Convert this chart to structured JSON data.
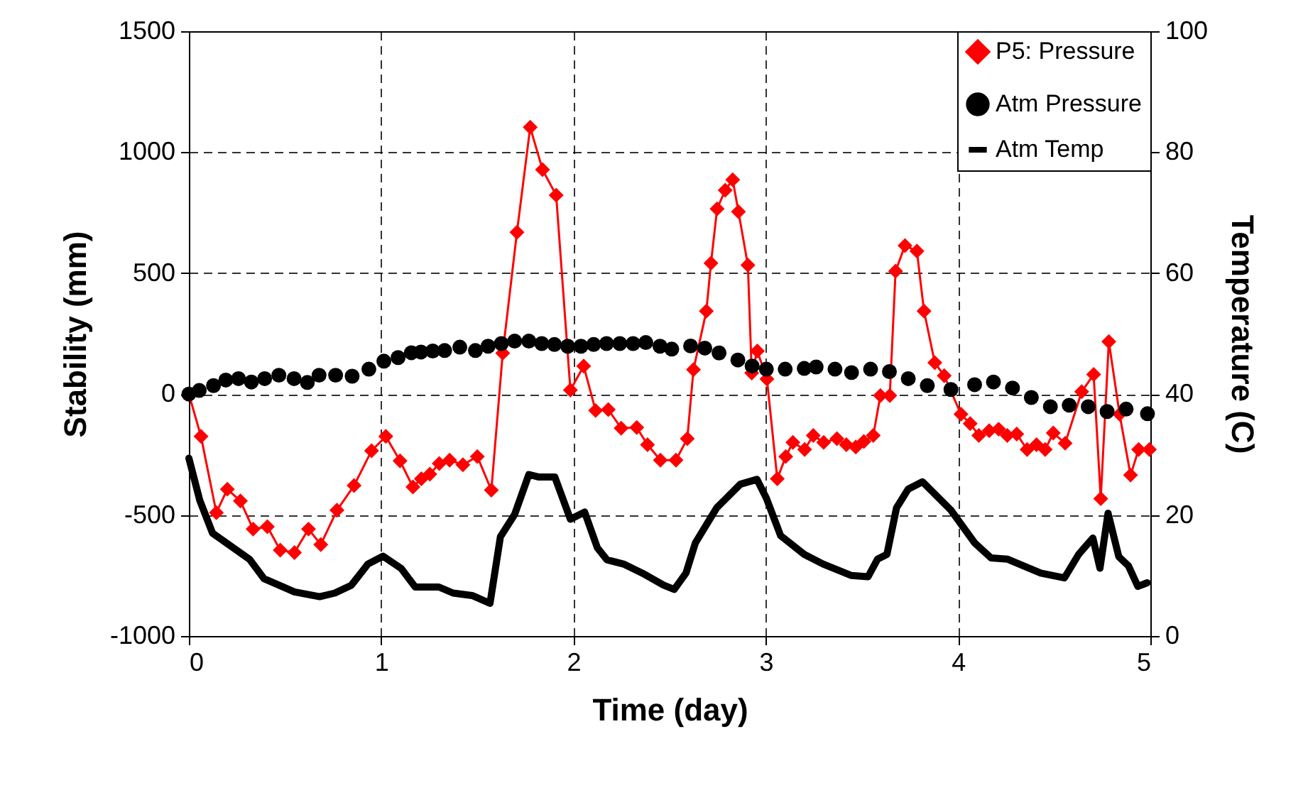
{
  "chart_data": {
    "type": "line",
    "xlabel": "Time (day)",
    "ylabel": "Stability (mm)",
    "y2label": "Temperature (C)",
    "xlim": [
      0,
      5
    ],
    "xticks": [
      0,
      1,
      2,
      3,
      4,
      5
    ],
    "ylim": [
      -1000,
      1500
    ],
    "yticks": [
      -1000,
      -500,
      0,
      500,
      1000,
      1500
    ],
    "y2lim": [
      0,
      100
    ],
    "y2ticks": [
      0,
      20,
      40,
      60,
      80,
      100
    ],
    "grid": true,
    "legend": "top right",
    "series": [
      {
        "name": "P5: Pressure",
        "marker": "diamond",
        "color": "#ff0000",
        "x": [
          0,
          0.063,
          0.143,
          0.2,
          0.268,
          0.334,
          0.408,
          0.475,
          0.549,
          0.622,
          0.686,
          0.77,
          0.859,
          0.95,
          1.024,
          1.098,
          1.165,
          1.209,
          1.253,
          1.302,
          1.356,
          1.425,
          1.5,
          1.573,
          1.632,
          1.706,
          1.775,
          1.839,
          1.91,
          1.984,
          2.053,
          2.115,
          2.181,
          2.248,
          2.329,
          2.385,
          2.452,
          2.533,
          2.592,
          2.624,
          2.691,
          2.715,
          2.747,
          2.789,
          2.828,
          2.858,
          2.907,
          2.927,
          2.956,
          3.006,
          3.06,
          3.104,
          3.141,
          3.202,
          3.247,
          3.301,
          3.37,
          3.419,
          3.468,
          3.51,
          3.559,
          3.596,
          3.645,
          3.675,
          3.724,
          3.786,
          3.823,
          3.879,
          3.928,
          4.015,
          4.063,
          4.108,
          4.162,
          4.211,
          4.256,
          4.305,
          4.359,
          4.408,
          4.453,
          4.495,
          4.557,
          4.643,
          4.705,
          4.742,
          4.784,
          4.84,
          4.897,
          4.939,
          4.995
        ],
        "values": [
          0,
          -175,
          -490,
          -393,
          -442,
          -558,
          -548,
          -645,
          -655,
          -558,
          -622,
          -480,
          -378,
          -234,
          -175,
          -276,
          -384,
          -350,
          -331,
          -287,
          -273,
          -292,
          -258,
          -397,
          169,
          669,
          1103,
          928,
          822,
          17,
          116,
          -68,
          -64,
          -141,
          -138,
          -209,
          -273,
          -273,
          -184,
          101,
          343,
          541,
          766,
          843,
          886,
          754,
          533,
          87,
          178,
          62,
          -350,
          -258,
          -200,
          -229,
          -171,
          -200,
          -184,
          -209,
          -219,
          -196,
          -171,
          -6,
          -6,
          508,
          614,
          591,
          343,
          130,
          76,
          -83,
          -122,
          -171,
          -151,
          -145,
          -171,
          -165,
          -229,
          -209,
          -229,
          -161,
          -203,
          10,
          81,
          -432,
          217,
          -83,
          -335,
          -229,
          -229
        ]
      },
      {
        "name": "Atm Pressure",
        "type": "scatter",
        "marker": "circle",
        "color": "#000000",
        "x": [
          0,
          0.054,
          0.128,
          0.192,
          0.258,
          0.325,
          0.394,
          0.468,
          0.547,
          0.616,
          0.677,
          0.763,
          0.849,
          0.936,
          1.014,
          1.088,
          1.157,
          1.207,
          1.268,
          1.33,
          1.409,
          1.49,
          1.556,
          1.625,
          1.694,
          1.768,
          1.835,
          1.901,
          1.97,
          2.039,
          2.105,
          2.172,
          2.241,
          2.31,
          2.376,
          2.45,
          2.511,
          2.609,
          2.683,
          2.757,
          2.855,
          2.929,
          3.003,
          3.101,
          3.2,
          3.262,
          3.36,
          3.446,
          3.545,
          3.643,
          3.741,
          3.84,
          3.963,
          4.086,
          4.184,
          4.283,
          4.381,
          4.48,
          4.578,
          4.677,
          4.775,
          4.874,
          4.985
        ],
        "values": [
          0,
          15,
          35,
          58,
          64,
          50,
          64,
          78,
          64,
          48,
          78,
          78,
          74,
          103,
          136,
          151,
          171,
          174,
          178,
          180,
          194,
          180,
          198,
          209,
          219,
          219,
          209,
          205,
          198,
          198,
          205,
          209,
          209,
          209,
          213,
          198,
          186,
          199,
          190,
          170,
          141,
          116,
          103,
          103,
          106,
          112,
          103,
          89,
          103,
          93,
          64,
          35,
          19,
          39,
          50,
          25,
          -14,
          -52,
          -46,
          -52,
          -72,
          -62,
          -81
        ]
      },
      {
        "name": "Atm Temp",
        "marker": "none",
        "axis": "y2",
        "color": "#000000",
        "x": [
          0,
          0.057,
          0.123,
          0.315,
          0.39,
          0.549,
          0.68,
          0.759,
          0.845,
          0.931,
          1.01,
          1.103,
          1.177,
          1.3,
          1.374,
          1.473,
          1.566,
          1.62,
          1.694,
          1.768,
          1.817,
          1.903,
          1.984,
          2.058,
          2.124,
          2.174,
          2.26,
          2.358,
          2.469,
          2.524,
          2.585,
          2.634,
          2.745,
          2.868,
          2.954,
          3.003,
          3.077,
          3.2,
          3.298,
          3.446,
          3.532,
          3.581,
          3.63,
          3.68,
          3.741,
          3.815,
          3.963,
          4.086,
          4.172,
          4.258,
          4.43,
          4.553,
          4.627,
          4.701,
          4.738,
          4.78,
          4.836,
          4.886,
          4.935,
          4.984
        ],
        "values": [
          29.4,
          22.4,
          17,
          12.7,
          9.5,
          7.3,
          6.5,
          7.1,
          8.4,
          11.9,
          13.2,
          11.2,
          8.1,
          8.1,
          7.1,
          6.7,
          5.4,
          16.4,
          20.1,
          26.7,
          26.3,
          26.3,
          19.3,
          20.5,
          14.6,
          12.6,
          11.9,
          10.4,
          8.4,
          7.7,
          10.4,
          15.4,
          21.2,
          25.1,
          25.9,
          22.8,
          16.6,
          13.5,
          11.9,
          10,
          9.8,
          12.7,
          13.5,
          21.2,
          24.3,
          25.5,
          20.8,
          15.4,
          12.9,
          12.7,
          10.4,
          9.6,
          13.5,
          16.2,
          11.2,
          20.3,
          13.1,
          11.6,
          8.2,
          8.8
        ]
      }
    ]
  }
}
